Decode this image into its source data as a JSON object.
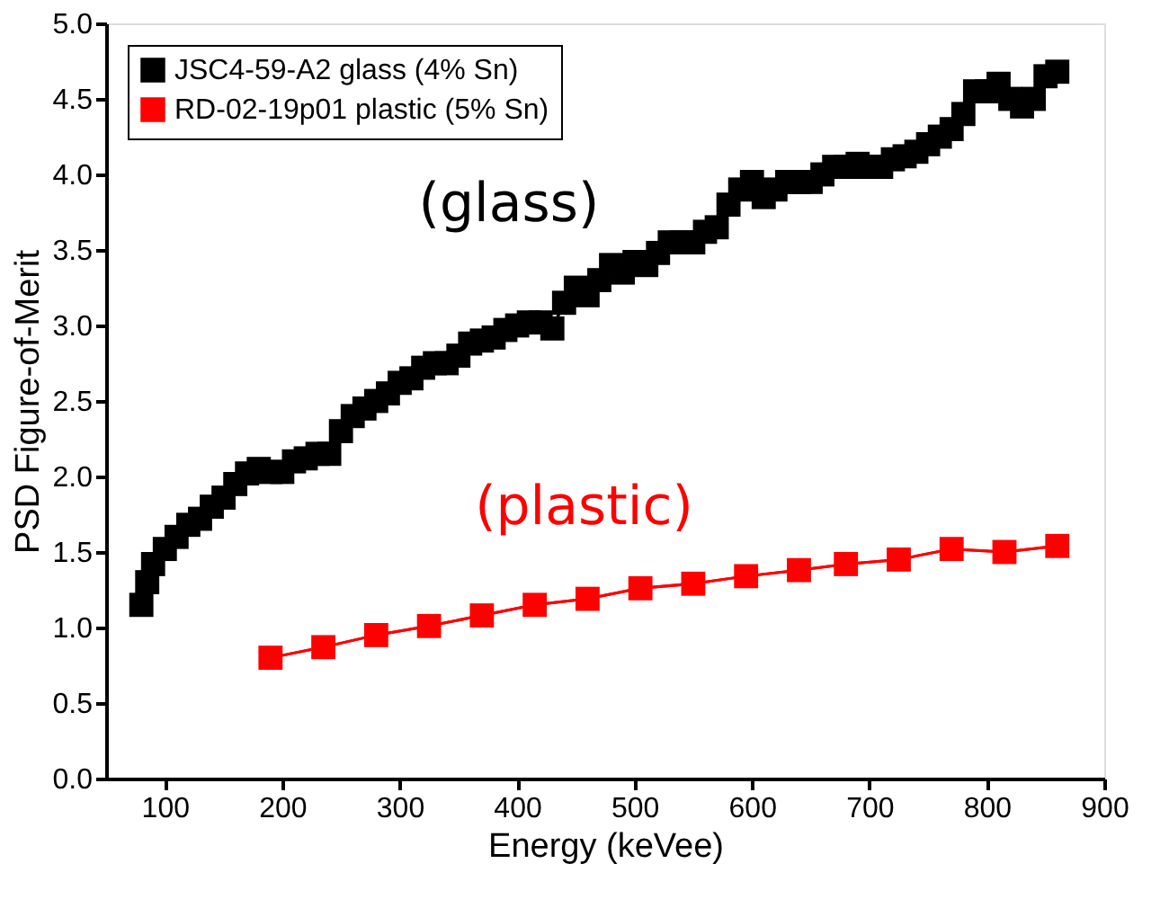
{
  "chart_data": {
    "type": "line",
    "xlabel": "Energy (keVee)",
    "ylabel": "PSD Figure-of-Merit",
    "xlim": [
      50,
      900
    ],
    "xticks": [
      100,
      200,
      300,
      400,
      500,
      600,
      700,
      800,
      900
    ],
    "ylim": [
      0,
      5
    ],
    "yticks": [
      {
        "value": 0,
        "label": "0.0"
      },
      0.5,
      {
        "value": 1,
        "label": "1.0"
      },
      1.5,
      {
        "value": 2,
        "label": "2.0"
      },
      2.5,
      {
        "value": 3,
        "label": "3.0"
      },
      3.5,
      {
        "value": 4,
        "label": "4.0"
      },
      4.5,
      {
        "value": 5,
        "label": "5.0"
      }
    ],
    "grid": false,
    "legend": "top left",
    "marker": "square",
    "line_style": "solid",
    "series": [
      {
        "name": "JSC4-59-A2 glass (4% Sn)",
        "color": "#000000",
        "x": [
          80,
          85,
          90,
          100,
          110,
          120,
          130,
          140,
          150,
          160,
          170,
          180,
          190,
          200,
          210,
          220,
          230,
          240,
          250,
          260,
          270,
          280,
          290,
          300,
          310,
          320,
          330,
          340,
          350,
          360,
          370,
          380,
          390,
          400,
          410,
          420,
          430,
          440,
          450,
          460,
          470,
          480,
          490,
          500,
          510,
          520,
          530,
          540,
          550,
          560,
          570,
          580,
          590,
          600,
          610,
          620,
          630,
          640,
          650,
          660,
          670,
          680,
          690,
          700,
          710,
          720,
          730,
          740,
          750,
          760,
          770,
          780,
          790,
          800,
          810,
          820,
          830,
          840,
          850,
          860
        ],
        "values": [
          1.15,
          1.3,
          1.42,
          1.52,
          1.6,
          1.68,
          1.72,
          1.8,
          1.86,
          1.95,
          2.02,
          2.05,
          2.03,
          2.03,
          2.1,
          2.12,
          2.15,
          2.15,
          2.3,
          2.4,
          2.45,
          2.5,
          2.55,
          2.62,
          2.65,
          2.72,
          2.75,
          2.75,
          2.8,
          2.88,
          2.9,
          2.92,
          2.97,
          3.0,
          3.02,
          3.02,
          2.98,
          3.15,
          3.25,
          3.2,
          3.3,
          3.4,
          3.35,
          3.42,
          3.4,
          3.48,
          3.55,
          3.55,
          3.55,
          3.62,
          3.65,
          3.8,
          3.9,
          3.95,
          3.85,
          3.9,
          3.95,
          3.95,
          3.95,
          4.0,
          4.05,
          4.05,
          4.07,
          4.05,
          4.05,
          4.1,
          4.12,
          4.15,
          4.2,
          4.25,
          4.3,
          4.4,
          4.55,
          4.55,
          4.6,
          4.5,
          4.45,
          4.5,
          4.65,
          4.68
        ]
      },
      {
        "name": "RD-02-19p01 plastic (5% Sn)",
        "color": "#ff0000",
        "x": [
          190,
          235,
          280,
          325,
          370,
          415,
          460,
          505,
          550,
          595,
          640,
          680,
          725,
          770,
          815,
          860
        ],
        "values": [
          0.8,
          0.87,
          0.95,
          1.01,
          1.08,
          1.15,
          1.19,
          1.26,
          1.29,
          1.34,
          1.38,
          1.42,
          1.45,
          1.52,
          1.5,
          1.54
        ]
      }
    ],
    "annotations": [
      "(glass)",
      "(plastic)"
    ]
  }
}
